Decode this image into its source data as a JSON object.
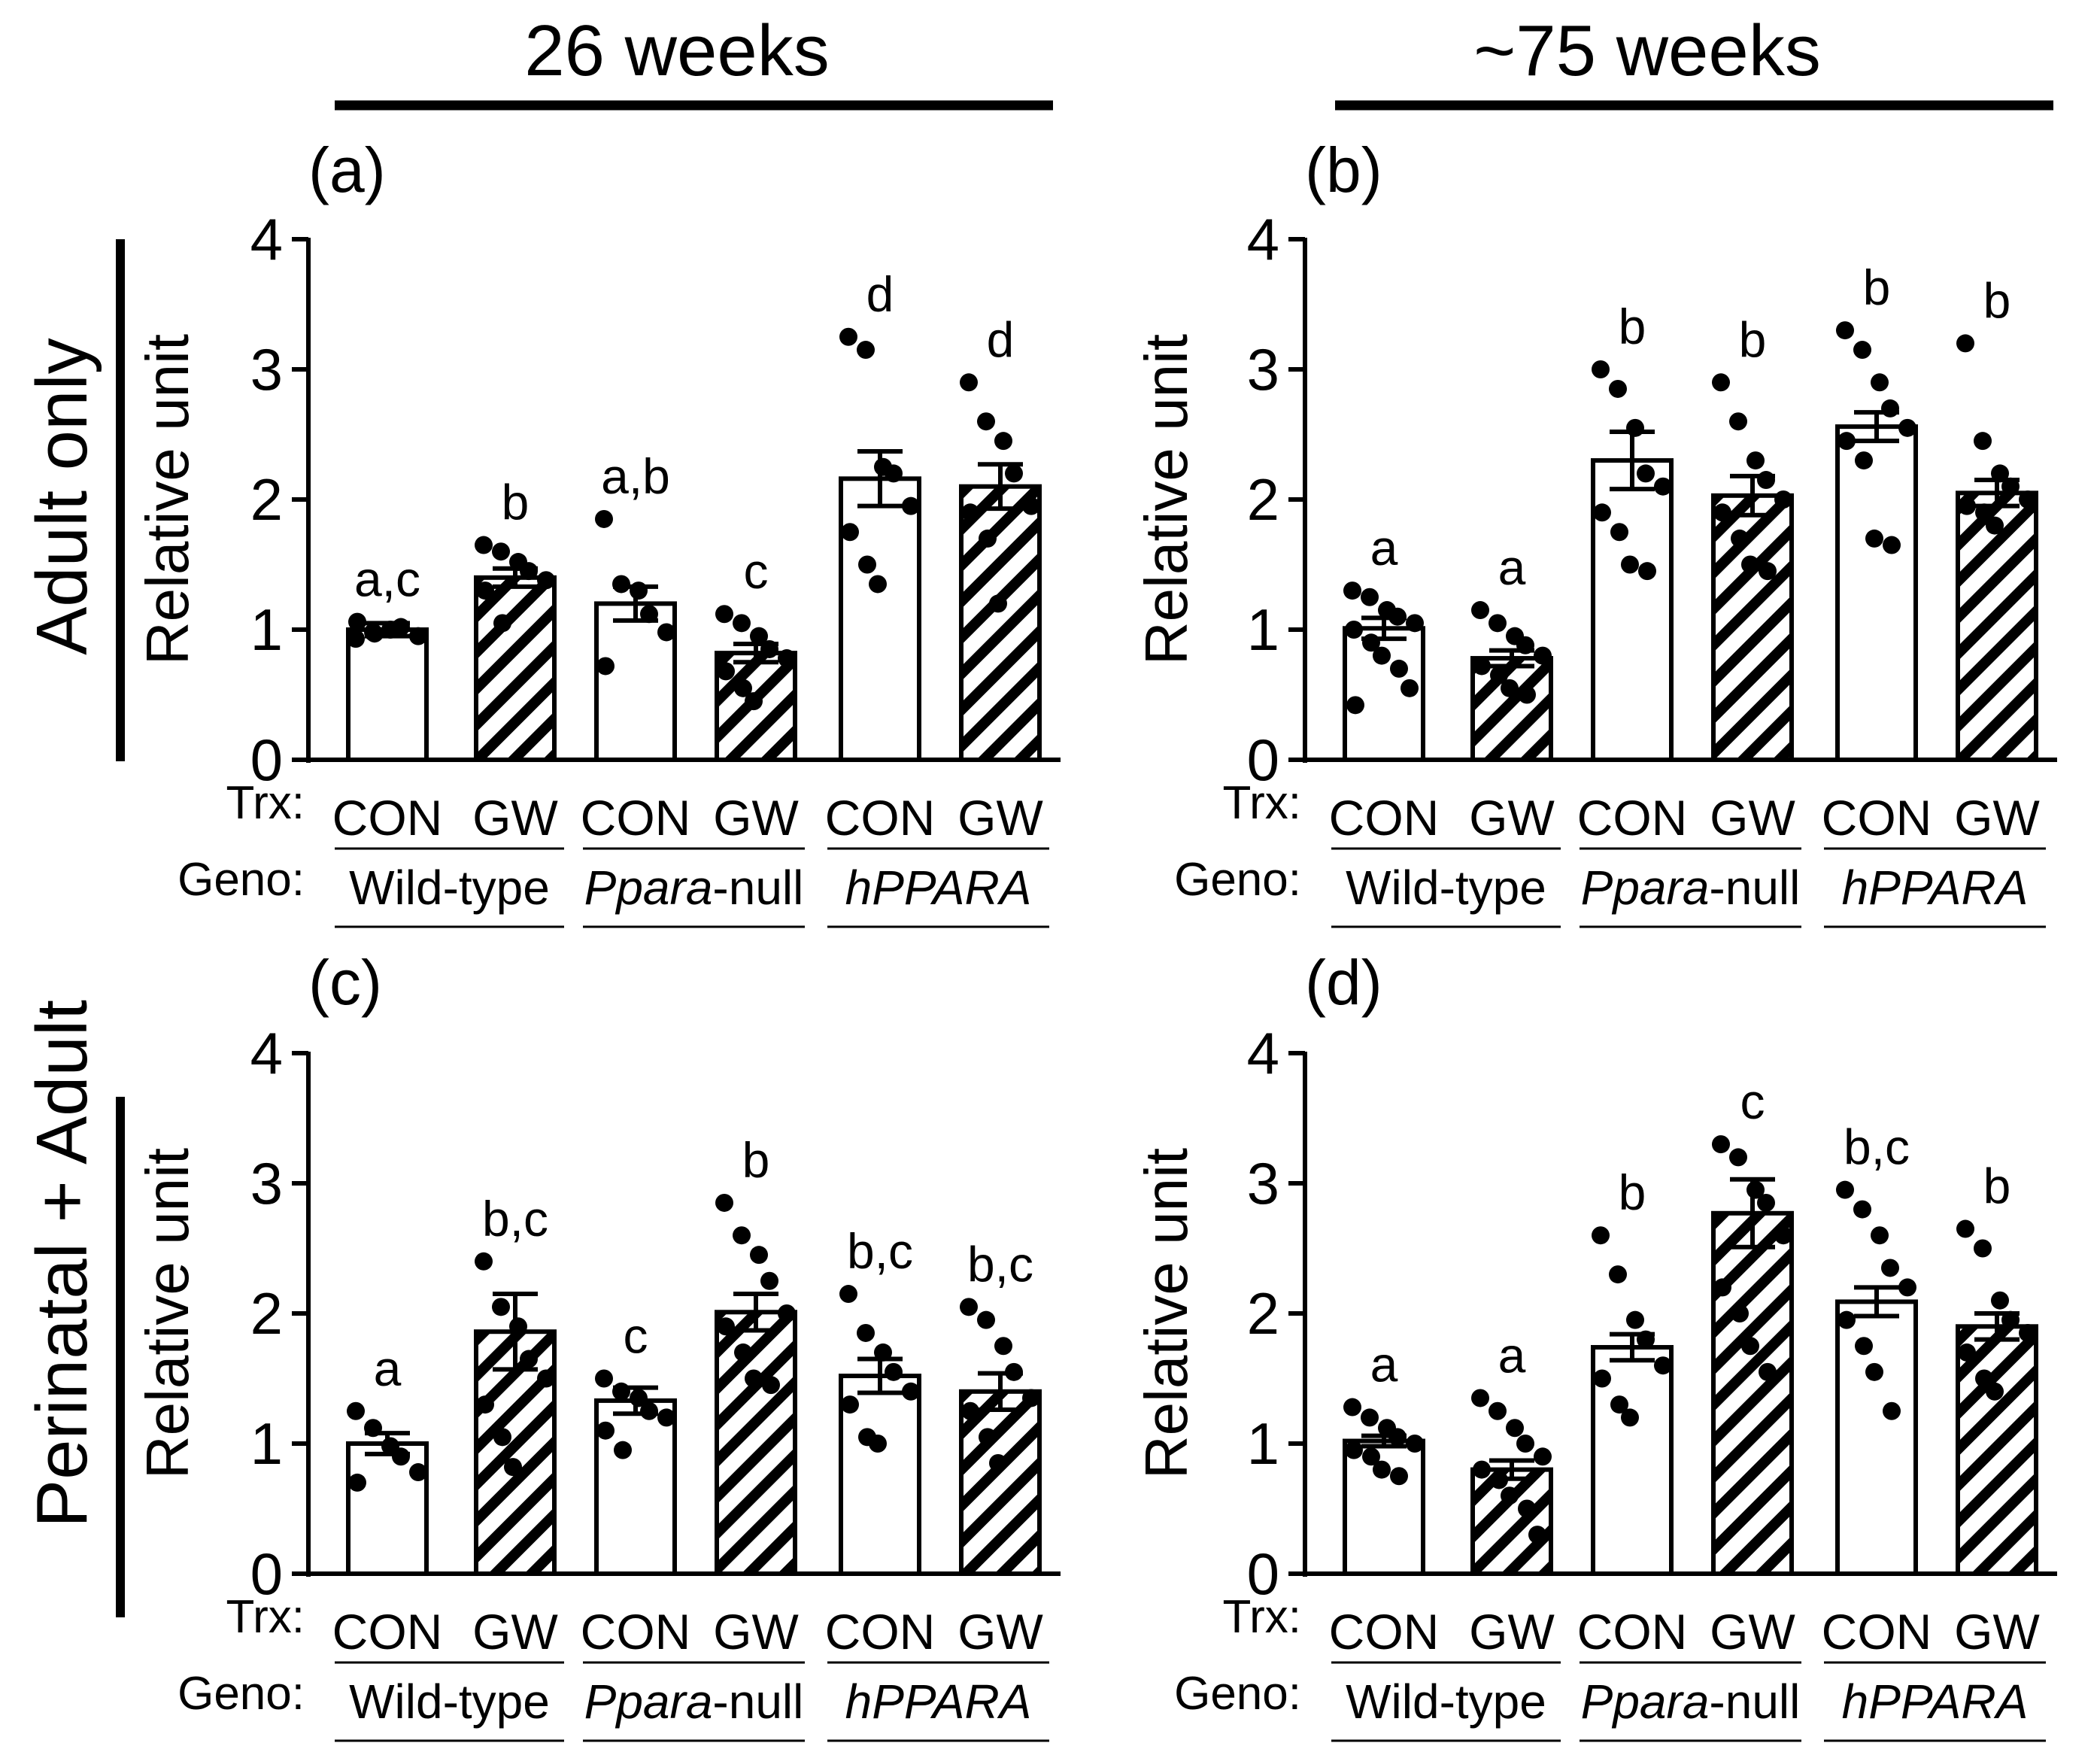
{
  "column_headers": [
    "26 weeks",
    "~75 weeks"
  ],
  "row_headers": [
    "Adult only",
    "Perinatal + Adult"
  ],
  "trx_label": "Trx:",
  "geno_label": "Geno:",
  "groups": [
    {
      "genotype": "Wild-type",
      "italic_part": "",
      "plain_part": "Wild-type"
    },
    {
      "genotype": "Ppara-null",
      "italic_part": "Ppara",
      "plain_part": "-null"
    },
    {
      "genotype": "hPPARA",
      "italic_part": "hPPARA",
      "plain_part": ""
    }
  ],
  "chart_data": [
    {
      "type": "bar",
      "panel": "(a)",
      "age": "26 weeks",
      "treatment_regime": "Adult only",
      "ylabel": "Relative unit",
      "ylim": [
        0,
        4
      ],
      "yticks": [
        "0",
        "1",
        "2",
        "3",
        "4"
      ],
      "categories": [
        "CON",
        "GW",
        "CON",
        "GW",
        "CON",
        "GW"
      ],
      "genotypes": [
        "Wild-type",
        "Wild-type",
        "Ppara-null",
        "Ppara-null",
        "hPPARA",
        "hPPARA"
      ],
      "hatched": [
        false,
        true,
        false,
        true,
        false,
        true
      ],
      "means": [
        1.0,
        1.4,
        1.2,
        0.82,
        2.16,
        2.1
      ],
      "sem": [
        0.05,
        0.07,
        0.13,
        0.07,
        0.21,
        0.17
      ],
      "letters": [
        "a,c",
        "b",
        "a,b",
        "c",
        "d",
        "d"
      ],
      "points": [
        [
          0.93,
          0.98,
          1.0,
          1.02,
          0.95,
          1.06,
          0.97
        ],
        [
          1.65,
          1.6,
          1.52,
          1.45,
          1.38,
          1.3,
          1.05
        ],
        [
          1.85,
          1.35,
          1.3,
          1.12,
          0.98,
          0.72
        ],
        [
          1.12,
          1.05,
          0.95,
          0.85,
          0.78,
          0.68,
          0.55,
          0.45
        ],
        [
          3.25,
          3.15,
          2.25,
          2.2,
          1.95,
          1.75,
          1.5,
          1.35
        ],
        [
          2.9,
          2.6,
          2.45,
          2.2,
          1.95,
          1.9,
          1.7,
          1.2
        ]
      ]
    },
    {
      "type": "bar",
      "panel": "(b)",
      "age": "~75 weeks",
      "treatment_regime": "Adult only",
      "ylabel": "Relative unit",
      "ylim": [
        0,
        4
      ],
      "yticks": [
        "0",
        "1",
        "2",
        "3",
        "4"
      ],
      "categories": [
        "CON",
        "GW",
        "CON",
        "GW",
        "CON",
        "GW"
      ],
      "genotypes": [
        "Wild-type",
        "Wild-type",
        "Ppara-null",
        "Ppara-null",
        "hPPARA",
        "hPPARA"
      ],
      "hatched": [
        false,
        true,
        false,
        true,
        false,
        true
      ],
      "means": [
        1.01,
        0.78,
        2.3,
        2.03,
        2.56,
        2.05
      ],
      "sem": [
        0.08,
        0.06,
        0.22,
        0.15,
        0.11,
        0.1
      ],
      "letters": [
        "a",
        "a",
        "b",
        "b",
        "b",
        "b"
      ],
      "points": [
        [
          1.3,
          1.25,
          1.15,
          1.1,
          1.05,
          1.0,
          0.9,
          0.8,
          0.7,
          0.55,
          0.42
        ],
        [
          1.15,
          1.05,
          0.95,
          0.88,
          0.8,
          0.72,
          0.65,
          0.55,
          0.5
        ],
        [
          3.0,
          2.85,
          2.55,
          2.2,
          2.1,
          1.9,
          1.75,
          1.5,
          1.45
        ],
        [
          2.9,
          2.6,
          2.3,
          2.15,
          2.0,
          1.9,
          1.7,
          1.5,
          1.45
        ],
        [
          3.3,
          3.15,
          2.9,
          2.7,
          2.55,
          2.45,
          2.3,
          1.7,
          1.65
        ],
        [
          3.2,
          2.45,
          2.2,
          2.1,
          2.0,
          1.95,
          1.9,
          1.8
        ]
      ]
    },
    {
      "type": "bar",
      "panel": "(c)",
      "age": "26 weeks",
      "treatment_regime": "Perinatal + Adult",
      "ylabel": "Relative unit",
      "ylim": [
        0,
        4
      ],
      "yticks": [
        "0",
        "1",
        "2",
        "3",
        "4"
      ],
      "categories": [
        "CON",
        "GW",
        "CON",
        "GW",
        "CON",
        "GW"
      ],
      "genotypes": [
        "Wild-type",
        "Wild-type",
        "Ppara-null",
        "Ppara-null",
        "hPPARA",
        "hPPARA"
      ],
      "hatched": [
        false,
        true,
        false,
        true,
        false,
        true
      ],
      "means": [
        1.0,
        1.86,
        1.33,
        2.01,
        1.52,
        1.4
      ],
      "sem": [
        0.08,
        0.29,
        0.1,
        0.14,
        0.13,
        0.14
      ],
      "letters": [
        "a",
        "b,c",
        "c",
        "b",
        "b,c",
        "b,c"
      ],
      "points": [
        [
          1.25,
          1.12,
          0.98,
          0.9,
          0.78,
          0.7
        ],
        [
          2.4,
          2.05,
          1.9,
          1.65,
          1.5,
          1.3,
          1.05,
          0.82
        ],
        [
          1.5,
          1.4,
          1.35,
          1.25,
          1.2,
          1.1,
          0.95
        ],
        [
          2.85,
          2.6,
          2.45,
          2.25,
          2.0,
          1.9,
          1.7,
          1.5,
          1.45
        ],
        [
          2.15,
          1.85,
          1.7,
          1.55,
          1.4,
          1.3,
          1.05,
          1.0
        ],
        [
          2.05,
          1.95,
          1.75,
          1.55,
          1.35,
          1.25,
          1.05,
          0.85
        ]
      ]
    },
    {
      "type": "bar",
      "panel": "(d)",
      "age": "~75 weeks",
      "treatment_regime": "Perinatal + Adult",
      "ylabel": "Relative unit",
      "ylim": [
        0,
        4
      ],
      "yticks": [
        "0",
        "1",
        "2",
        "3",
        "4"
      ],
      "categories": [
        "CON",
        "GW",
        "CON",
        "GW",
        "CON",
        "GW"
      ],
      "genotypes": [
        "Wild-type",
        "Wild-type",
        "Ppara-null",
        "Ppara-null",
        "hPPARA",
        "hPPARA"
      ],
      "hatched": [
        false,
        true,
        false,
        true,
        false,
        true
      ],
      "means": [
        1.02,
        0.8,
        1.74,
        2.77,
        2.09,
        1.9
      ],
      "sem": [
        0.04,
        0.07,
        0.1,
        0.26,
        0.11,
        0.1
      ],
      "letters": [
        "a",
        "a",
        "b",
        "c",
        "b,c",
        "b"
      ],
      "points": [
        [
          1.28,
          1.2,
          1.12,
          1.05,
          1.0,
          0.95,
          0.9,
          0.8,
          0.75
        ],
        [
          1.35,
          1.25,
          1.12,
          1.0,
          0.9,
          0.8,
          0.72,
          0.6,
          0.5,
          0.3
        ],
        [
          2.6,
          2.3,
          1.95,
          1.8,
          1.6,
          1.5,
          1.3,
          1.2
        ],
        [
          3.3,
          3.2,
          2.95,
          2.85,
          2.6,
          2.2,
          2.0,
          1.75,
          1.55
        ],
        [
          2.95,
          2.8,
          2.6,
          2.35,
          2.2,
          1.95,
          1.75,
          1.55,
          1.25
        ],
        [
          2.65,
          2.5,
          2.1,
          1.95,
          1.85,
          1.7,
          1.5,
          1.4
        ]
      ]
    }
  ]
}
